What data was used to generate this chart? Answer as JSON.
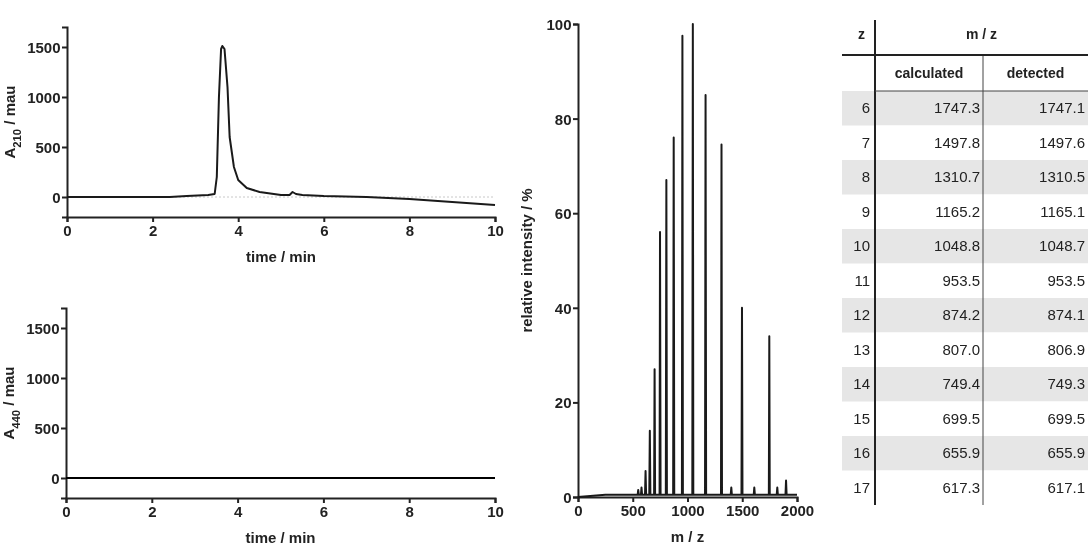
{
  "chart_data": [
    {
      "type": "line",
      "xlabel": "time / min",
      "ylabel": "A$_{210}$ / mau",
      "xlim": [
        0,
        10
      ],
      "ylim": [
        -200,
        1700
      ],
      "xticks": [
        0,
        2,
        4,
        6,
        8,
        10
      ],
      "yticks": [
        0,
        500,
        1000,
        1500
      ],
      "grid": false,
      "ref_lines": [
        {
          "axis": "y",
          "value": 0,
          "color": "#c8c8c8",
          "line_style": "dotted"
        }
      ],
      "series": [
        {
          "color": "#1a1a1a",
          "x": [
            0,
            1,
            2,
            2.4,
            2.8,
            3.3,
            3.45,
            3.5,
            3.55,
            3.6,
            3.63,
            3.68,
            3.75,
            3.8,
            3.9,
            4.0,
            4.2,
            4.5,
            5.0,
            5.2,
            5.27,
            5.35,
            5.5,
            6,
            7,
            8,
            9,
            10
          ],
          "values": [
            0,
            0,
            0,
            0,
            10,
            20,
            30,
            200,
            1000,
            1480,
            1510,
            1480,
            1100,
            600,
            300,
            170,
            90,
            50,
            20,
            20,
            50,
            30,
            20,
            10,
            0,
            -20,
            -50,
            -80
          ]
        }
      ]
    },
    {
      "type": "line",
      "xlabel": "time / min",
      "ylabel": "A$_{440}$ / mau",
      "xlim": [
        0,
        10
      ],
      "ylim": [
        -200,
        1700
      ],
      "xticks": [
        0,
        2,
        4,
        6,
        8,
        10
      ],
      "yticks": [
        0,
        500,
        1000,
        1500
      ],
      "grid": false,
      "series": [
        {
          "color": "#000000",
          "x": [
            0,
            2,
            4,
            6,
            8,
            10
          ],
          "values": [
            0,
            0,
            0,
            0,
            0,
            0
          ]
        }
      ]
    },
    {
      "type": "line",
      "xlabel": "m / z",
      "ylabel": "relative intensity / %",
      "xlim": [
        0,
        2000
      ],
      "ylim": [
        0,
        100
      ],
      "xticks": [
        0,
        500,
        1000,
        1500,
        2000
      ],
      "yticks": [
        0,
        20,
        40,
        60,
        80,
        100
      ],
      "grid": false,
      "series": [
        {
          "color": "#1a1a1a",
          "x": [
            0,
            250,
            480,
            545,
            550,
            555,
            575,
            580,
            585,
            612,
            617,
            622,
            651,
            656,
            661,
            695,
            699.5,
            704,
            745,
            749,
            754,
            802,
            807,
            812,
            869,
            874,
            879,
            949,
            953.5,
            958,
            1044,
            1048.7,
            1053,
            1160,
            1165,
            1170,
            1306,
            1310.5,
            1315,
            1395,
            1400,
            1405,
            1493,
            1497.6,
            1502,
            1605,
            1610,
            1615,
            1743,
            1747,
            1751,
            1815,
            1820,
            1825,
            1895,
            1900,
            1905,
            2000
          ],
          "values": [
            0,
            0.5,
            0.5,
            0.5,
            1.5,
            0.5,
            0.5,
            2,
            0.5,
            0.5,
            5.5,
            0.5,
            0.5,
            14,
            0.5,
            0.5,
            27,
            0.5,
            0.5,
            56,
            0.5,
            0.5,
            67,
            0.5,
            0.5,
            76,
            0.5,
            0.5,
            97.5,
            0.5,
            0.5,
            100,
            0.5,
            0.5,
            85,
            0.5,
            0.5,
            74.5,
            0.5,
            0.5,
            2,
            0.5,
            0.5,
            40,
            0.5,
            0.5,
            2,
            0.5,
            0.5,
            34,
            0.5,
            0.5,
            2,
            0.5,
            0.5,
            3.5,
            0.5,
            0.5
          ]
        }
      ]
    },
    {
      "type": "heatmap",
      "title": "m / z",
      "ylabel": "z",
      "categories": [
        "calculated",
        "detected"
      ],
      "y_categories": [
        "6",
        "7",
        "8",
        "9",
        "10",
        "11",
        "12",
        "13",
        "14",
        "15",
        "16",
        "17"
      ],
      "cells": [
        [
          1747.3,
          1747.1
        ],
        [
          1497.8,
          1497.6
        ],
        [
          1310.7,
          1310.5
        ],
        [
          1165.2,
          1165.1
        ],
        [
          1048.8,
          1048.7
        ],
        [
          953.5,
          953.5
        ],
        [
          874.2,
          874.1
        ],
        [
          807.0,
          806.9
        ],
        [
          749.4,
          749.3
        ],
        [
          699.5,
          699.5
        ],
        [
          655.9,
          655.9
        ],
        [
          617.3,
          617.1
        ]
      ],
      "cell_labels": [
        [
          "1747.3",
          "1747.1"
        ],
        [
          "1497.8",
          "1497.6"
        ],
        [
          "1310.7",
          "1310.5"
        ],
        [
          "1165.2",
          "1165.1"
        ],
        [
          "1048.8",
          "1048.7"
        ],
        [
          "953.5",
          "953.5"
        ],
        [
          "874.2",
          "874.1"
        ],
        [
          "807.0",
          "806.9"
        ],
        [
          "749.4",
          "749.3"
        ],
        [
          "699.5",
          "699.5"
        ],
        [
          "655.9",
          "655.9"
        ],
        [
          "617.3",
          "617.1"
        ]
      ]
    }
  ]
}
